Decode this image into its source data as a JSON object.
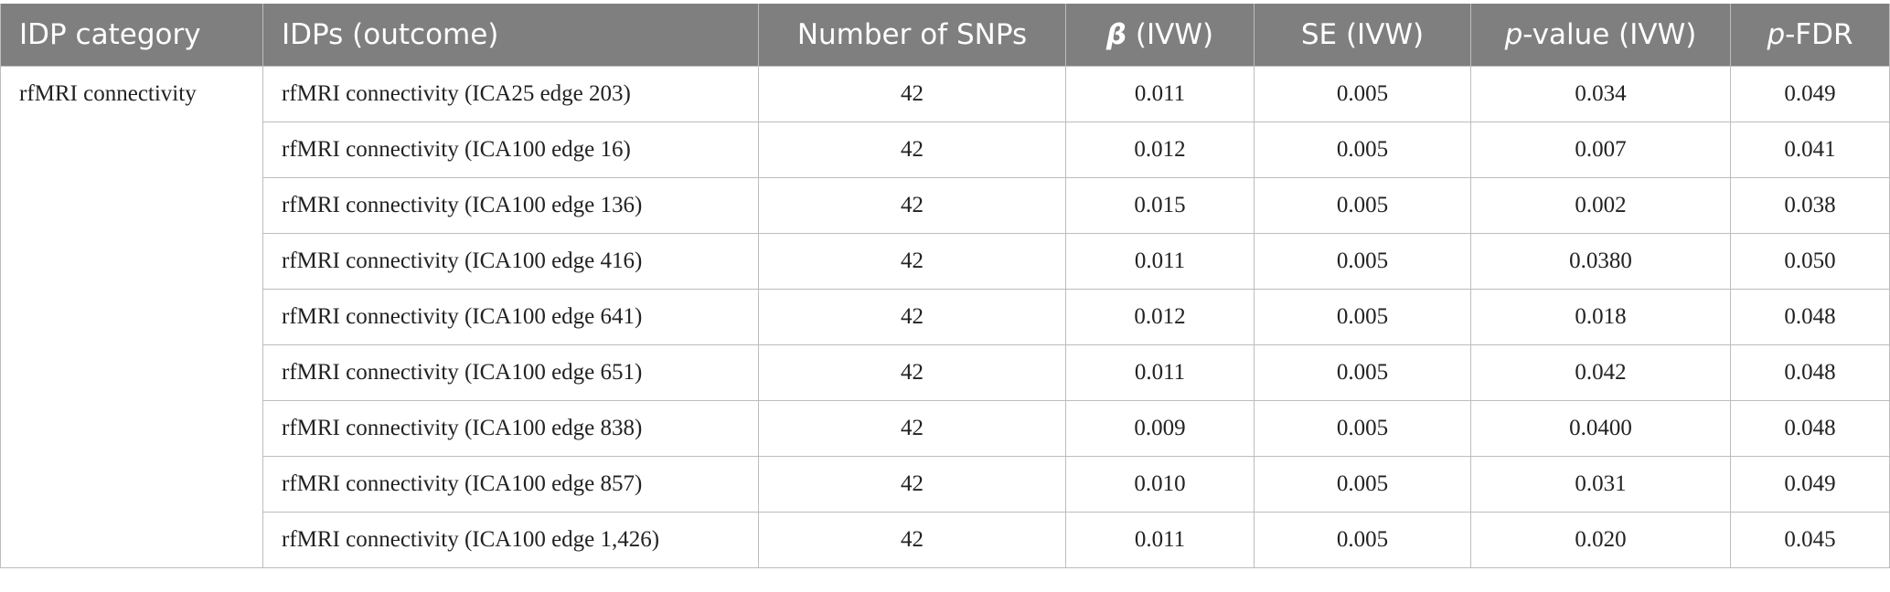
{
  "table": {
    "headers": [
      "IDP category",
      "IDPs (outcome)",
      "Number of SNPs",
      "β (IVW)",
      "SE (IVW)",
      "p-value (IVW)",
      "p-FDR"
    ],
    "groups": [
      {
        "category": "rfMRI connectivity",
        "rows": [
          [
            "rfMRI connectivity (ICA25 edge 203)",
            "42",
            "0.011",
            "0.005",
            "0.034",
            "0.049"
          ],
          [
            "rfMRI connectivity (ICA100 edge 16)",
            "42",
            "0.012",
            "0.005",
            "0.007",
            "0.041"
          ],
          [
            "rfMRI connectivity (ICA100 edge 136)",
            "42",
            "0.015",
            "0.005",
            "0.002",
            "0.038"
          ],
          [
            "rfMRI connectivity (ICA100 edge 416)",
            "42",
            "0.011",
            "0.005",
            "0.0380",
            "0.050"
          ],
          [
            "rfMRI connectivity (ICA100 edge 641)",
            "42",
            "0.012",
            "0.005",
            "0.018",
            "0.048"
          ],
          [
            "rfMRI connectivity (ICA100 edge 651)",
            "42",
            "0.011",
            "0.005",
            "0.042",
            "0.048"
          ],
          [
            "rfMRI connectivity (ICA100 edge 838)",
            "42",
            "0.009",
            "0.005",
            "0.0400",
            "0.048"
          ],
          [
            "rfMRI connectivity (ICA100 edge 857)",
            "42",
            "0.010",
            "0.005",
            "0.031",
            "0.049"
          ],
          [
            "rfMRI connectivity (ICA100 edge 1,426)",
            "42",
            "0.011",
            "0.005",
            "0.020",
            "0.045"
          ]
        ]
      }
    ]
  }
}
